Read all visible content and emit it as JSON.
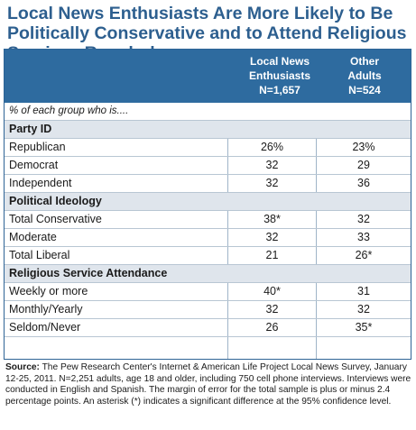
{
  "title": "Local News Enthusiasts Are More Likely to Be Politically Conservative and to Attend Religious Services Regularly",
  "columns": [
    {
      "line1": "Local News",
      "line2": "Enthusiasts",
      "line3": "N=1,657"
    },
    {
      "line1": "Other",
      "line2": "Adults",
      "line3": "N=524"
    }
  ],
  "note": "% of each group who is....",
  "sections": [
    {
      "heading": "Party ID",
      "rows": [
        {
          "label": "Republican",
          "a": "26%",
          "b": "23%"
        },
        {
          "label": "Democrat",
          "a": "32",
          "b": "29"
        },
        {
          "label": "Independent",
          "a": "32",
          "b": "36"
        }
      ]
    },
    {
      "heading": "Political Ideology",
      "rows": [
        {
          "label": "Total Conservative",
          "a": "38*",
          "b": "32"
        },
        {
          "label": "Moderate",
          "a": "32",
          "b": "33"
        },
        {
          "label": "Total Liberal",
          "a": "21",
          "b": "26*"
        }
      ]
    },
    {
      "heading": "Religious Service Attendance",
      "rows": [
        {
          "label": "Weekly or more",
          "a": "40*",
          "b": "31"
        },
        {
          "label": "Monthly/Yearly",
          "a": "32",
          "b": "32"
        },
        {
          "label": "Seldom/Never",
          "a": "26",
          "b": "35*"
        }
      ]
    }
  ],
  "source": {
    "label": "Source:",
    "text": " The Pew Research Center's Internet & American Life Project Local News Survey, January 12-25, 2011. N=2,251 adults, age 18 and older, including 750 cell phone interviews. Interviews were conducted in English and Spanish. The margin of error for the total sample is plus or minus 2.4 percentage points.  An asterisk (*) indicates a significant difference at the 95% confidence level."
  }
}
